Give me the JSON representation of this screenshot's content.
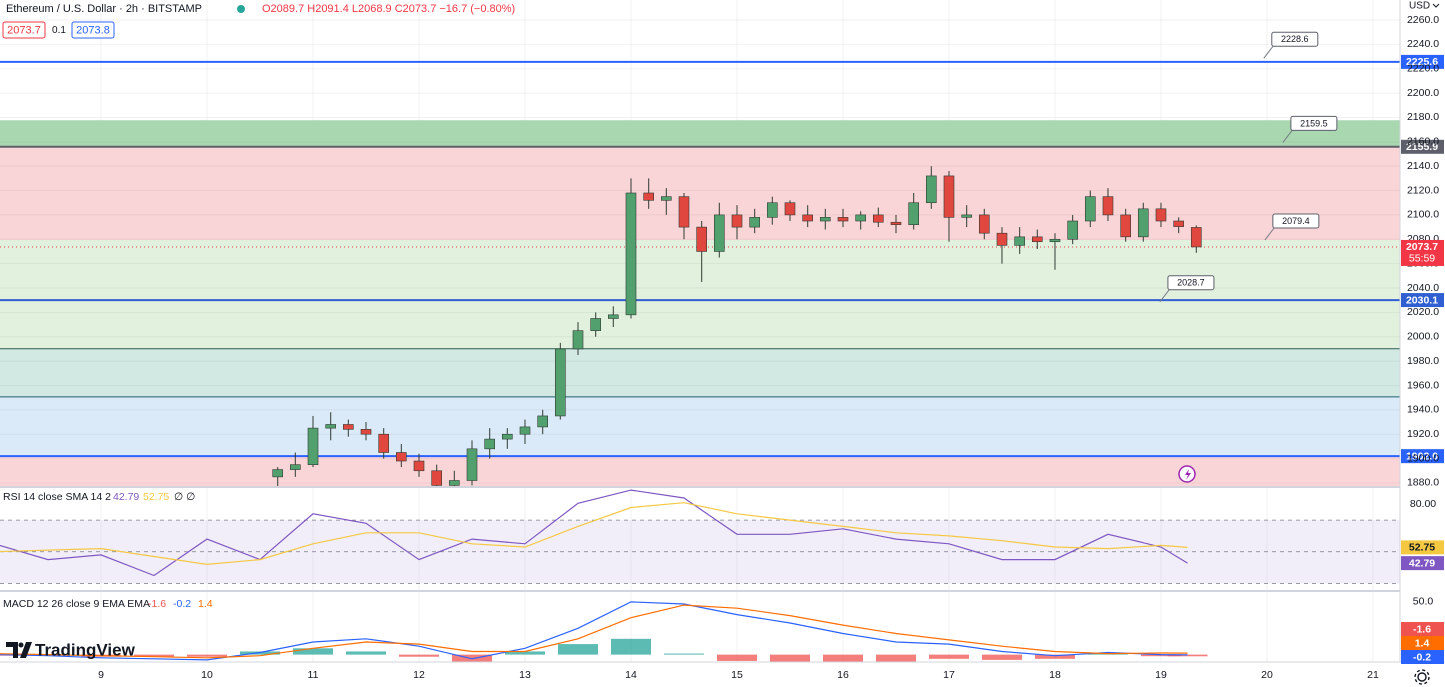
{
  "chart_data": [
    {
      "type": "candlestick",
      "title": "Ethereum / U.S. Dollar · 2h · BITSTAMP",
      "ohlc_text": "O2089.7 H2091.4 L2068.9 C2073.7 −16.7 (−0.80%)",
      "bid": 2073.7,
      "spread": 0.1,
      "ask": 2073.8,
      "currency": "USD",
      "x": [
        10.667,
        10.833,
        11.0,
        11.167,
        11.333,
        11.5,
        11.667,
        11.833,
        12.0,
        12.167,
        12.333,
        12.5,
        12.667,
        12.833,
        13.0,
        13.167,
        13.333,
        13.5,
        13.667,
        13.833,
        14.0,
        14.167,
        14.333,
        14.5,
        14.667,
        14.833,
        15.0,
        15.167,
        15.333,
        15.5,
        15.667,
        15.833,
        16.0,
        16.167,
        16.333,
        16.5,
        16.667,
        16.833,
        17.0,
        17.167,
        17.333,
        17.5,
        17.667,
        17.833,
        18.0,
        18.167,
        18.333,
        18.5,
        18.667,
        18.833,
        19.0,
        19.167,
        19.333
      ],
      "open": [
        1885,
        1891,
        1895,
        1925,
        1928,
        1924,
        1920,
        1905,
        1898,
        1890,
        1878,
        1882,
        1908,
        1916,
        1920,
        1926,
        1935,
        1990,
        2005,
        2015,
        2018,
        2118,
        2112,
        2115,
        2090,
        2070,
        2100,
        2090,
        2098,
        2110,
        2100,
        2095,
        2098,
        2095,
        2100,
        2094,
        2092,
        2110,
        2132,
        2098,
        2100,
        2085,
        2075,
        2082,
        2078,
        2080,
        2095,
        2115,
        2100,
        2082,
        2105,
        2095,
        2089.7
      ],
      "high": [
        1893,
        1905,
        1935,
        1938,
        1932,
        1930,
        1925,
        1912,
        1904,
        1895,
        1890,
        1915,
        1925,
        1925,
        1932,
        1940,
        1995,
        2012,
        2020,
        2025,
        2130,
        2130,
        2122,
        2118,
        2095,
        2110,
        2108,
        2105,
        2115,
        2112,
        2108,
        2105,
        2105,
        2103,
        2106,
        2100,
        2118,
        2140,
        2136,
        2108,
        2105,
        2090,
        2090,
        2088,
        2085,
        2100,
        2120,
        2122,
        2105,
        2110,
        2110,
        2098,
        2091.4
      ],
      "low": [
        1876,
        1885,
        1893,
        1915,
        1918,
        1915,
        1900,
        1893,
        1885,
        1870,
        1868,
        1878,
        1900,
        1908,
        1912,
        1920,
        1932,
        1985,
        2000,
        2008,
        2015,
        2105,
        2100,
        2080,
        2045,
        2065,
        2080,
        2085,
        2092,
        2095,
        2090,
        2088,
        2090,
        2088,
        2090,
        2085,
        2088,
        2105,
        2078,
        2090,
        2080,
        2060,
        2068,
        2072,
        2055,
        2076,
        2090,
        2095,
        2078,
        2078,
        2090,
        2085,
        2068.9
      ],
      "close": [
        1891,
        1895,
        1925,
        1928,
        1924,
        1920,
        1905,
        1898,
        1890,
        1878,
        1882,
        1908,
        1916,
        1920,
        1926,
        1935,
        1990,
        2005,
        2015,
        2018,
        2118,
        2112,
        2115,
        2090,
        2070,
        2100,
        2090,
        2098,
        2110,
        2100,
        2095,
        2098,
        2095,
        2100,
        2094,
        2092,
        2110,
        2132,
        2098,
        2100,
        2085,
        2075,
        2082,
        2078,
        2080,
        2095,
        2115,
        2100,
        2082,
        2105,
        2095,
        2090.4,
        2073.7
      ],
      "color_up": "#53a06f",
      "color_down": "#e0473f",
      "xlim": [
        8.047,
        21.255
      ],
      "ylim": [
        1877.5,
        2276.4
      ],
      "xticks": [
        9,
        10,
        11,
        12,
        13,
        14,
        15,
        16,
        17,
        18,
        19,
        20,
        21
      ],
      "yticks": [
        {
          "value": 1880,
          "label": "1880.0"
        },
        {
          "value": 1900,
          "label": "1900.0"
        },
        {
          "value": 1920,
          "label": "1920.0"
        },
        {
          "value": 1940,
          "label": "1940.0"
        },
        {
          "value": 1960,
          "label": "1960.0"
        },
        {
          "value": 1980,
          "label": "1980.0"
        },
        {
          "value": 2000,
          "label": "2000.0"
        },
        {
          "value": 2020,
          "label": "2020.0"
        },
        {
          "value": 2040,
          "label": "2040.0"
        },
        {
          "value": 2060,
          "label": "2060.0"
        },
        {
          "value": 2080,
          "label": "2080.0"
        },
        {
          "value": 2100,
          "label": "2100.0"
        },
        {
          "value": 2120,
          "label": "2120.0"
        },
        {
          "value": 2140,
          "label": "2140.0"
        },
        {
          "value": 2160,
          "label": "2160.0"
        },
        {
          "value": 2180,
          "label": "2180.0"
        },
        {
          "value": 2200,
          "label": "2200.0"
        },
        {
          "value": 2220,
          "label": "2220.0"
        },
        {
          "value": 2240,
          "label": "2240.0"
        },
        {
          "value": 2260,
          "label": "2260.0"
        }
      ],
      "grid": true,
      "zones": [
        {
          "from": 2155.9,
          "to": 2177.7,
          "color": "#a9d7b0"
        },
        {
          "from": 2079.4,
          "to": 2155.9,
          "color": "#fad5d7"
        },
        {
          "from": 1990.2,
          "to": 2079.4,
          "color": "#e1f1de"
        },
        {
          "from": 1950.7,
          "to": 1990.2,
          "color": "#d2e9e3"
        },
        {
          "from": 1902,
          "to": 1950.7,
          "color": "#dbeaf8"
        },
        {
          "from": 1877.5,
          "to": 1902,
          "color": "#fad5d7"
        }
      ],
      "levels": [
        {
          "value": 2225.6,
          "color": "#2962ff",
          "tag": true
        },
        {
          "value": 2155.9,
          "color": "#5d606b",
          "tag": true
        },
        {
          "value": 2030.1,
          "color": "#2f5fd0",
          "tag": true
        },
        {
          "value": 1990.2,
          "color": "#2e5e4e",
          "tag": false
        },
        {
          "value": 1950.7,
          "color": "#1f5f6f",
          "tag": false
        },
        {
          "value": 1902,
          "label": "1902.0",
          "color": "#2962ff",
          "tag": true
        }
      ],
      "annotations": [
        {
          "value": 2228.6,
          "x": 19.97
        },
        {
          "value": 2159.5,
          "x": 20.15
        },
        {
          "value": 2079.4,
          "x": 19.98
        },
        {
          "value": 2028.7,
          "x": 18.99
        }
      ],
      "last_price": {
        "value": 2073.7,
        "countdown": "55:59",
        "color": "#f23645"
      }
    },
    {
      "type": "line",
      "title": "RSI 14 close SMA 14 2",
      "na_text": "∅ ∅",
      "x": [
        8.0,
        8.5,
        9.0,
        9.5,
        10.0,
        10.5,
        11.0,
        11.5,
        12.0,
        12.5,
        13.0,
        13.5,
        14.0,
        14.5,
        15.0,
        15.5,
        16.0,
        16.5,
        17.0,
        17.5,
        18.0,
        18.5,
        19.0,
        19.25
      ],
      "series": [
        {
          "color": "#7e57c2",
          "values": [
            54.8,
            45,
            48,
            35,
            58,
            45,
            74,
            68,
            45,
            58,
            55,
            80.6,
            89,
            84,
            61,
            61,
            64.5,
            58,
            55,
            45,
            45,
            61,
            53,
            42.79
          ]
        },
        {
          "color": "#f5c842",
          "values": [
            50,
            51,
            52,
            47,
            42,
            45,
            55,
            62,
            62,
            55,
            53,
            66,
            78,
            81,
            74,
            70,
            66,
            62,
            60,
            57,
            53,
            52,
            54,
            52.75
          ]
        }
      ],
      "xlim": [
        8.047,
        21.255
      ],
      "ylim": [
        25.8,
        90.3
      ],
      "yticks": [
        {
          "value": 80,
          "label": "80.00"
        }
      ],
      "bands": [
        30,
        50,
        70
      ],
      "band_color": "#7e57c2"
    },
    {
      "type": "macd",
      "title": "MACD 12 26 close 9 EMA EMA",
      "x": [
        8.0,
        8.5,
        9.0,
        9.5,
        10.0,
        10.5,
        11.0,
        11.5,
        12.0,
        12.5,
        13.0,
        13.5,
        14.0,
        14.5,
        15.0,
        15.5,
        16.0,
        16.5,
        17.0,
        17.5,
        18.0,
        18.5,
        19.0,
        19.25
      ],
      "histogram": {
        "color_up": "#26a69a",
        "color_down": "#ef5350",
        "values": [
          -1,
          -1,
          -2,
          -2,
          -2,
          3,
          6,
          3,
          -2,
          -7,
          3,
          10,
          15,
          1,
          -6,
          -7,
          -8,
          -8,
          -4,
          -5,
          -4,
          1,
          -1.5,
          -1.6
        ]
      },
      "series": [
        {
          "color": "#2962ff",
          "values": [
            0,
            -1,
            -3,
            -4,
            -5,
            2,
            12,
            15,
            8,
            -4,
            6,
            25,
            50,
            48,
            38,
            30,
            20,
            12,
            10,
            3,
            -1,
            2,
            0,
            -0.2
          ]
        },
        {
          "color": "#ff6d00",
          "values": [
            1,
            0,
            -1,
            -2,
            -3,
            -1,
            6,
            12,
            10,
            3,
            3,
            15,
            35,
            47,
            44,
            37,
            28,
            20,
            14,
            8,
            3,
            1,
            1.5,
            1.4
          ]
        }
      ],
      "xlim": [
        8.047,
        21.255
      ],
      "ylim": [
        -7,
        59.4
      ],
      "yticks": [
        {
          "value": 50,
          "label": "50.0"
        }
      ]
    }
  ],
  "branding": "TradingView"
}
